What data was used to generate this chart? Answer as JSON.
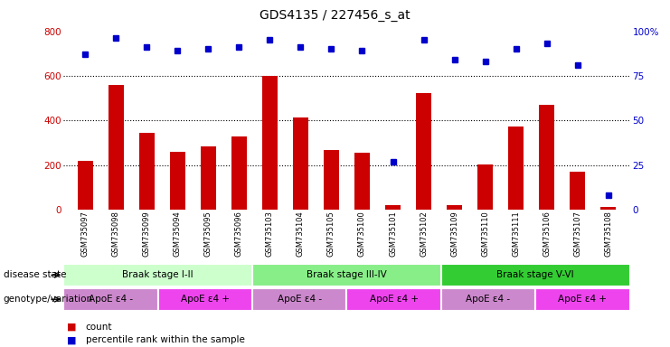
{
  "title": "GDS4135 / 227456_s_at",
  "samples": [
    "GSM735097",
    "GSM735098",
    "GSM735099",
    "GSM735094",
    "GSM735095",
    "GSM735096",
    "GSM735103",
    "GSM735104",
    "GSM735105",
    "GSM735100",
    "GSM735101",
    "GSM735102",
    "GSM735109",
    "GSM735110",
    "GSM735111",
    "GSM735106",
    "GSM735107",
    "GSM735108"
  ],
  "counts": [
    220,
    560,
    345,
    262,
    285,
    330,
    600,
    415,
    268,
    255,
    20,
    525,
    20,
    205,
    375,
    470,
    170,
    15
  ],
  "percentile_ranks": [
    87,
    96,
    91,
    89,
    90,
    91,
    95,
    91,
    90,
    89,
    27,
    95,
    84,
    83,
    90,
    93,
    81,
    8
  ],
  "bar_color": "#cc0000",
  "dot_color": "#0000cc",
  "bg_color": "#ffffff",
  "left_axis_color": "#cc0000",
  "right_axis_color": "#0000cc",
  "ylim_left": [
    0,
    800
  ],
  "ylim_right": [
    0,
    100
  ],
  "yticks_left": [
    0,
    200,
    400,
    600,
    800
  ],
  "yticks_right": [
    0,
    25,
    50,
    75,
    100
  ],
  "ytick_labels_right": [
    "0",
    "25",
    "50",
    "75",
    "100%"
  ],
  "grid_values": [
    200,
    400,
    600
  ],
  "disease_state_groups": [
    {
      "label": "Braak stage I-II",
      "start": 0,
      "end": 6,
      "color": "#ccffcc"
    },
    {
      "label": "Braak stage III-IV",
      "start": 6,
      "end": 12,
      "color": "#88ee88"
    },
    {
      "label": "Braak stage V-VI",
      "start": 12,
      "end": 18,
      "color": "#33cc33"
    }
  ],
  "genotype_groups": [
    {
      "label": "ApoE ε4 -",
      "start": 0,
      "end": 3,
      "color": "#cc88cc"
    },
    {
      "label": "ApoE ε4 +",
      "start": 3,
      "end": 6,
      "color": "#ee44ee"
    },
    {
      "label": "ApoE ε4 -",
      "start": 6,
      "end": 9,
      "color": "#cc88cc"
    },
    {
      "label": "ApoE ε4 +",
      "start": 9,
      "end": 12,
      "color": "#ee44ee"
    },
    {
      "label": "ApoE ε4 -",
      "start": 12,
      "end": 15,
      "color": "#cc88cc"
    },
    {
      "label": "ApoE ε4 +",
      "start": 15,
      "end": 18,
      "color": "#ee44ee"
    }
  ],
  "disease_state_label": "disease state",
  "genotype_label": "genotype/variation",
  "legend_count_label": "count",
  "legend_pct_label": "percentile rank within the sample",
  "bar_width": 0.5
}
